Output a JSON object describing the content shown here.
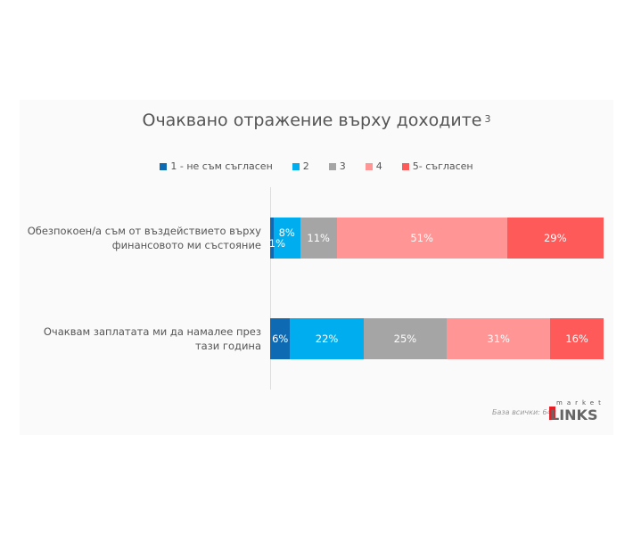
{
  "chart_data": {
    "type": "bar",
    "orientation": "horizontal-stacked",
    "title": "Очаквано отражение върху доходите",
    "title_superscript": "3",
    "categories": [
      "Обезпокоен/а съм от въздействието върху финансовото ми състояние",
      "Очаквам заплатата ми да намалее през тази година"
    ],
    "series": [
      {
        "name": "1 - не съм съгласен",
        "color": "#0f6ab4",
        "values": [
          1,
          6
        ]
      },
      {
        "name": "2",
        "color": "#00aeef",
        "values": [
          8,
          22
        ]
      },
      {
        "name": "3",
        "color": "#a5a5a5",
        "values": [
          11,
          25
        ]
      },
      {
        "name": "4",
        "color": "#ff9595",
        "values": [
          51,
          31
        ]
      },
      {
        "name": "5- съгласен",
        "color": "#ff5a5a",
        "values": [
          29,
          16
        ]
      }
    ],
    "legend": "top",
    "value_suffix": "%"
  },
  "footnote": "База всички: 649",
  "logo": {
    "top": "market",
    "bottom": "LINKS"
  }
}
